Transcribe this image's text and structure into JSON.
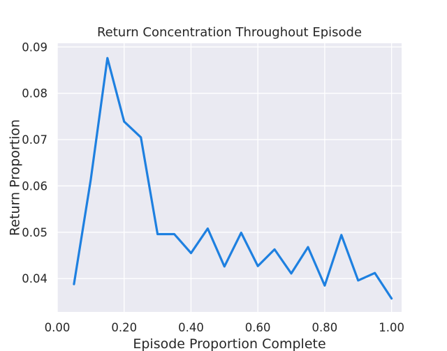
{
  "chart_data": {
    "type": "line",
    "title": "Return Concentration Throughout Episode",
    "xlabel": "Episode Proportion Complete",
    "ylabel": "Return Proportion",
    "xlim": [
      0.0,
      1.03
    ],
    "ylim": [
      0.0328,
      0.0908
    ],
    "xticks": [
      0.0,
      0.2,
      0.4,
      0.6,
      0.8,
      1.0
    ],
    "xtick_labels": [
      "0.00",
      "0.20",
      "0.40",
      "0.60",
      "0.80",
      "1.00"
    ],
    "yticks": [
      0.04,
      0.05,
      0.06,
      0.07,
      0.08,
      0.09
    ],
    "ytick_labels": [
      "0.04",
      "0.05",
      "0.06",
      "0.07",
      "0.08",
      "0.09"
    ],
    "grid": true,
    "background_color": "#eaeaf2",
    "line_color": "#1e80e0",
    "series": [
      {
        "x": [
          0.05,
          0.1,
          0.15,
          0.2,
          0.25,
          0.3,
          0.35,
          0.4,
          0.45,
          0.5,
          0.55,
          0.6,
          0.65,
          0.7,
          0.75,
          0.8,
          0.85,
          0.9,
          0.95,
          1.0
        ],
        "values": [
          0.0388,
          0.0613,
          0.0876,
          0.0739,
          0.0705,
          0.0496,
          0.0496,
          0.0455,
          0.0508,
          0.0426,
          0.0499,
          0.0427,
          0.0463,
          0.0411,
          0.0468,
          0.0385,
          0.0494,
          0.0396,
          0.0412,
          0.0357
        ]
      }
    ]
  }
}
